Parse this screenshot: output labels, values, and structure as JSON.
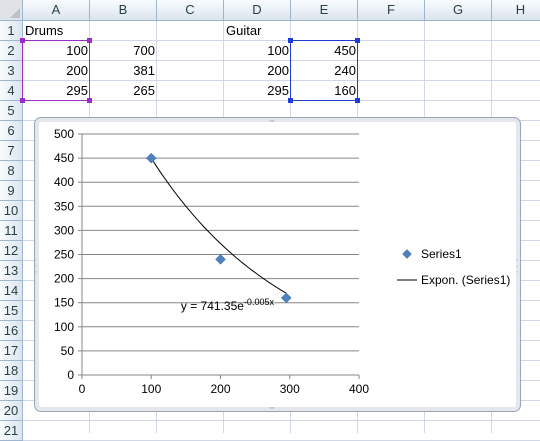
{
  "sheet": {
    "columns": [
      "A",
      "B",
      "C",
      "D",
      "E",
      "F",
      "G",
      "H"
    ],
    "rows": [
      "1",
      "2",
      "3",
      "4",
      "5",
      "6",
      "7",
      "8",
      "9",
      "10",
      "11",
      "12",
      "13",
      "14",
      "15",
      "16",
      "17",
      "18",
      "19",
      "20",
      "21"
    ],
    "cells": [
      {
        "ref": "A1",
        "value": "Drums",
        "align": "left"
      },
      {
        "ref": "A2",
        "value": "100",
        "align": "right"
      },
      {
        "ref": "A3",
        "value": "200",
        "align": "right"
      },
      {
        "ref": "A4",
        "value": "295",
        "align": "right"
      },
      {
        "ref": "B2",
        "value": "700",
        "align": "right"
      },
      {
        "ref": "B3",
        "value": "381",
        "align": "right"
      },
      {
        "ref": "B4",
        "value": "265",
        "align": "right"
      },
      {
        "ref": "D1",
        "value": "Guitar",
        "align": "left"
      },
      {
        "ref": "D2",
        "value": "100",
        "align": "right"
      },
      {
        "ref": "D3",
        "value": "200",
        "align": "right"
      },
      {
        "ref": "D4",
        "value": "295",
        "align": "right"
      },
      {
        "ref": "E2",
        "value": "450",
        "align": "right"
      },
      {
        "ref": "E3",
        "value": "240",
        "align": "right"
      },
      {
        "ref": "E4",
        "value": "160",
        "align": "right"
      }
    ],
    "highlighted_ranges": [
      {
        "range": "A2:A4",
        "color": "#9a2cc8"
      },
      {
        "range": "E2:E4",
        "color": "#1e3cd6"
      }
    ],
    "gridline_color": "#d0d7e5",
    "header_color": "#dbe4ee"
  },
  "chart_data": {
    "type": "scatter",
    "series": [
      {
        "name": "Series1",
        "points": [
          [
            100,
            450
          ],
          [
            200,
            240
          ],
          [
            295,
            160
          ]
        ],
        "color": "#4f81bd",
        "marker": "diamond"
      }
    ],
    "trendline": {
      "type": "exponential",
      "name": "Expon. (Series1)",
      "a": 741.35,
      "b": -0.005,
      "label": "y = 741.35e",
      "label_exponent": "-0.005x",
      "color": "#000000"
    },
    "x_ticks": [
      "0",
      "100",
      "200",
      "300",
      "400"
    ],
    "y_ticks": [
      "0",
      "50",
      "100",
      "150",
      "200",
      "250",
      "300",
      "350",
      "400",
      "450",
      "500"
    ],
    "xlim": [
      0,
      400
    ],
    "ylim": [
      0,
      500
    ],
    "y_gridlines": true,
    "x_gridlines": false,
    "legend_position": "right",
    "legend": {
      "series_label": "Series1",
      "trend_label": "Expon. (Series1)"
    }
  }
}
